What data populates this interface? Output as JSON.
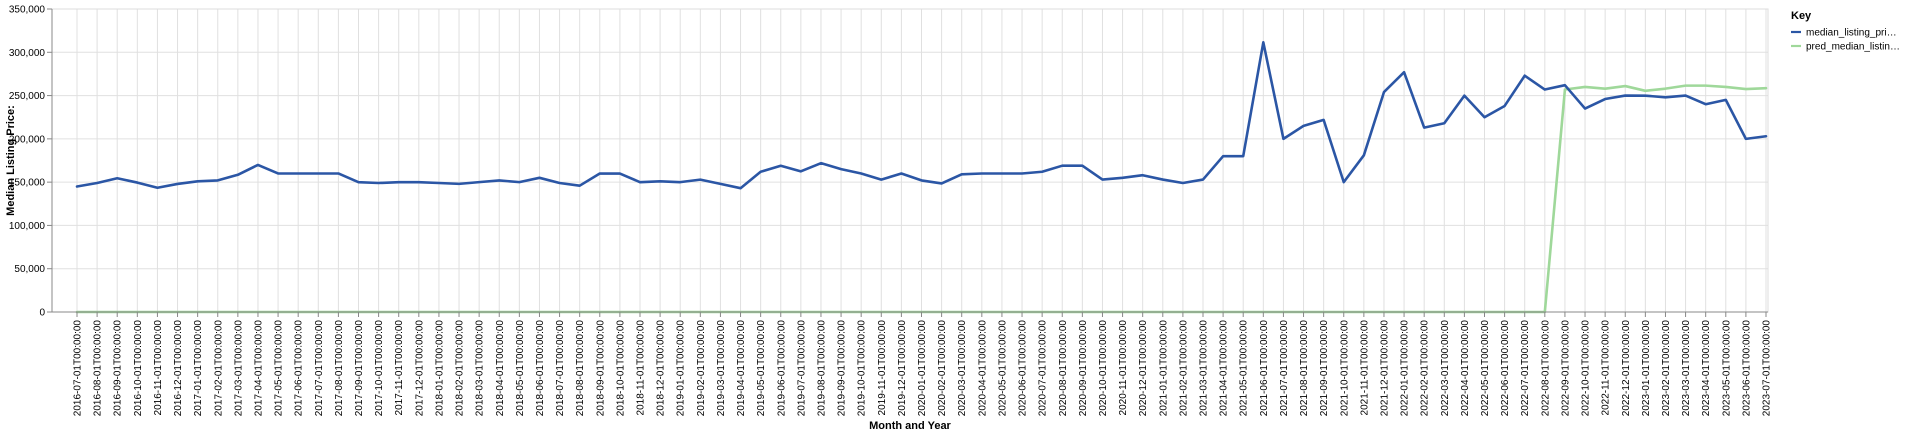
{
  "chart_data": {
    "type": "line",
    "xlabel": "Month and Year",
    "ylabel": "Median Listing Price:",
    "ylim": [
      0,
      350000
    ],
    "yticks": [
      "0",
      "50,000",
      "100,000",
      "150,000",
      "200,000",
      "250,000",
      "300,000",
      "350,000"
    ],
    "grid": true,
    "legend": {
      "title": "Key",
      "position": "top-right"
    },
    "categories": [
      "2016-07-01T00:00:00",
      "2016-08-01T00:00:00",
      "2016-09-01T00:00:00",
      "2016-10-01T00:00:00",
      "2016-11-01T00:00:00",
      "2016-12-01T00:00:00",
      "2017-01-01T00:00:00",
      "2017-02-01T00:00:00",
      "2017-03-01T00:00:00",
      "2017-04-01T00:00:00",
      "2017-05-01T00:00:00",
      "2017-06-01T00:00:00",
      "2017-07-01T00:00:00",
      "2017-08-01T00:00:00",
      "2017-09-01T00:00:00",
      "2017-10-01T00:00:00",
      "2017-11-01T00:00:00",
      "2017-12-01T00:00:00",
      "2018-01-01T00:00:00",
      "2018-02-01T00:00:00",
      "2018-03-01T00:00:00",
      "2018-04-01T00:00:00",
      "2018-05-01T00:00:00",
      "2018-06-01T00:00:00",
      "2018-07-01T00:00:00",
      "2018-08-01T00:00:00",
      "2018-09-01T00:00:00",
      "2018-10-01T00:00:00",
      "2018-11-01T00:00:00",
      "2018-12-01T00:00:00",
      "2019-01-01T00:00:00",
      "2019-02-01T00:00:00",
      "2019-03-01T00:00:00",
      "2019-04-01T00:00:00",
      "2019-05-01T00:00:00",
      "2019-06-01T00:00:00",
      "2019-07-01T00:00:00",
      "2019-08-01T00:00:00",
      "2019-09-01T00:00:00",
      "2019-10-01T00:00:00",
      "2019-11-01T00:00:00",
      "2019-12-01T00:00:00",
      "2020-01-01T00:00:00",
      "2020-02-01T00:00:00",
      "2020-03-01T00:00:00",
      "2020-04-01T00:00:00",
      "2020-05-01T00:00:00",
      "2020-06-01T00:00:00",
      "2020-07-01T00:00:00",
      "2020-08-01T00:00:00",
      "2020-09-01T00:00:00",
      "2020-10-01T00:00:00",
      "2020-11-01T00:00:00",
      "2020-12-01T00:00:00",
      "2021-01-01T00:00:00",
      "2021-02-01T00:00:00",
      "2021-03-01T00:00:00",
      "2021-04-01T00:00:00",
      "2021-05-01T00:00:00",
      "2021-06-01T00:00:00",
      "2021-07-01T00:00:00",
      "2021-08-01T00:00:00",
      "2021-09-01T00:00:00",
      "2021-10-01T00:00:00",
      "2021-11-01T00:00:00",
      "2021-12-01T00:00:00",
      "2022-01-01T00:00:00",
      "2022-02-01T00:00:00",
      "2022-03-01T00:00:00",
      "2022-04-01T00:00:00",
      "2022-05-01T00:00:00",
      "2022-06-01T00:00:00",
      "2022-07-01T00:00:00",
      "2022-08-01T00:00:00",
      "2022-09-01T00:00:00",
      "2022-10-01T00:00:00",
      "2022-11-01T00:00:00",
      "2022-12-01T00:00:00",
      "2023-01-01T00:00:00",
      "2023-02-01T00:00:00",
      "2023-03-01T00:00:00",
      "2023-04-01T00:00:00",
      "2023-05-01T00:00:00",
      "2023-06-01T00:00:00",
      "2023-07-01T00:00:00"
    ],
    "series": [
      {
        "name": "median_listing_pri…",
        "color": "#2b56a5",
        "values": [
          145000,
          149000,
          154500,
          149500,
          143500,
          147900,
          151000,
          152000,
          158500,
          169900,
          160000,
          160000,
          160000,
          160000,
          150000,
          149000,
          150000,
          150000,
          149000,
          148000,
          150000,
          152000,
          150000,
          155000,
          149000,
          145900,
          160000,
          159900,
          150000,
          151000,
          150000,
          152900,
          148000,
          143000,
          162000,
          168900,
          162500,
          171900,
          165000,
          160000,
          152900,
          160000,
          152000,
          148500,
          159000,
          160000,
          160000,
          160000,
          162000,
          169000,
          169000,
          153000,
          155000,
          158000,
          153000,
          149000,
          153000,
          180000,
          180000,
          311500,
          200000,
          215000,
          221900,
          150000,
          181000,
          254000,
          277000,
          213000,
          218000,
          249900,
          225000,
          238000,
          273000,
          257000,
          262000,
          235000,
          246000,
          250000,
          249900,
          248000,
          250000,
          240000,
          245000,
          200000,
          203000
        ]
      },
      {
        "name": "pred_median_listin…",
        "color": "#9fd89a",
        "values": [
          0,
          0,
          0,
          0,
          0,
          0,
          0,
          0,
          0,
          0,
          0,
          0,
          0,
          0,
          0,
          0,
          0,
          0,
          0,
          0,
          0,
          0,
          0,
          0,
          0,
          0,
          0,
          0,
          0,
          0,
          0,
          0,
          0,
          0,
          0,
          0,
          0,
          0,
          0,
          0,
          0,
          0,
          0,
          0,
          0,
          0,
          0,
          0,
          0,
          0,
          0,
          0,
          0,
          0,
          0,
          0,
          0,
          0,
          0,
          0,
          0,
          0,
          0,
          0,
          0,
          0,
          0,
          0,
          0,
          0,
          0,
          0,
          0,
          0,
          257000,
          260000,
          258000,
          261000,
          255500,
          258000,
          261500,
          261500,
          260000,
          257500,
          258500
        ]
      }
    ]
  }
}
